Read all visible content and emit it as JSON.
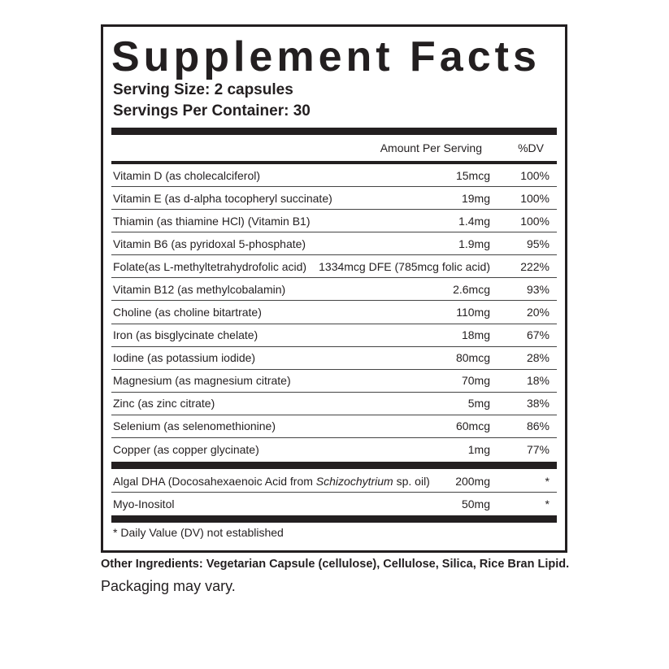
{
  "label": {
    "title": "Supplement Facts",
    "serving_size": "Serving Size: 2 capsules",
    "servings_per_container": "Servings Per Container: 30",
    "header": {
      "amount": "Amount Per Serving",
      "dv": "%DV"
    },
    "nutrients": [
      {
        "name": "Vitamin D (as cholecalciferol)",
        "amount": "15mcg",
        "dv": "100%"
      },
      {
        "name": "Vitamin E (as d-alpha tocopheryl succinate)",
        "amount": "19mg",
        "dv": "100%"
      },
      {
        "name": "Thiamin (as thiamine HCl) (Vitamin B1)",
        "amount": "1.4mg",
        "dv": "100%"
      },
      {
        "name": "Vitamin B6 (as pyridoxal 5-phosphate)",
        "amount": "1.9mg",
        "dv": "95%"
      },
      {
        "name": "Folate(as L-methyltetrahydrofolic acid)",
        "amount": "1334mcg DFE (785mcg folic acid)",
        "dv": "222%"
      },
      {
        "name": "Vitamin B12 (as methylcobalamin)",
        "amount": "2.6mcg",
        "dv": "93%"
      },
      {
        "name": "Choline (as choline bitartrate)",
        "amount": "110mg",
        "dv": "20%"
      },
      {
        "name": "Iron (as bisglycinate chelate)",
        "amount": "18mg",
        "dv": "67%"
      },
      {
        "name": "Iodine (as potassium iodide)",
        "amount": "80mcg",
        "dv": "28%"
      },
      {
        "name": "Magnesium (as magnesium citrate)",
        "amount": "70mg",
        "dv": "18%"
      },
      {
        "name": "Zinc (as zinc citrate)",
        "amount": "5mg",
        "dv": "38%"
      },
      {
        "name": "Selenium (as selenomethionine)",
        "amount": "60mcg",
        "dv": "86%"
      },
      {
        "name": "Copper (as copper glycinate)",
        "amount": "1mg",
        "dv": "77%"
      }
    ],
    "other": [
      {
        "name_parts": [
          "Algal DHA (Docosahexaenoic Acid from ",
          "Schizochytrium",
          " sp. oil)"
        ],
        "amount": "200mg",
        "dv": "*"
      },
      {
        "name_parts": [
          "Myo-Inositol"
        ],
        "amount": "50mg",
        "dv": "*"
      }
    ],
    "footnote": "* Daily Value (DV) not established"
  },
  "other_ingredients": "Other Ingredients: Vegetarian Capsule (cellulose), Cellulose, Silica, Rice Bran Lipid.",
  "packaging_note": "Packaging may vary."
}
